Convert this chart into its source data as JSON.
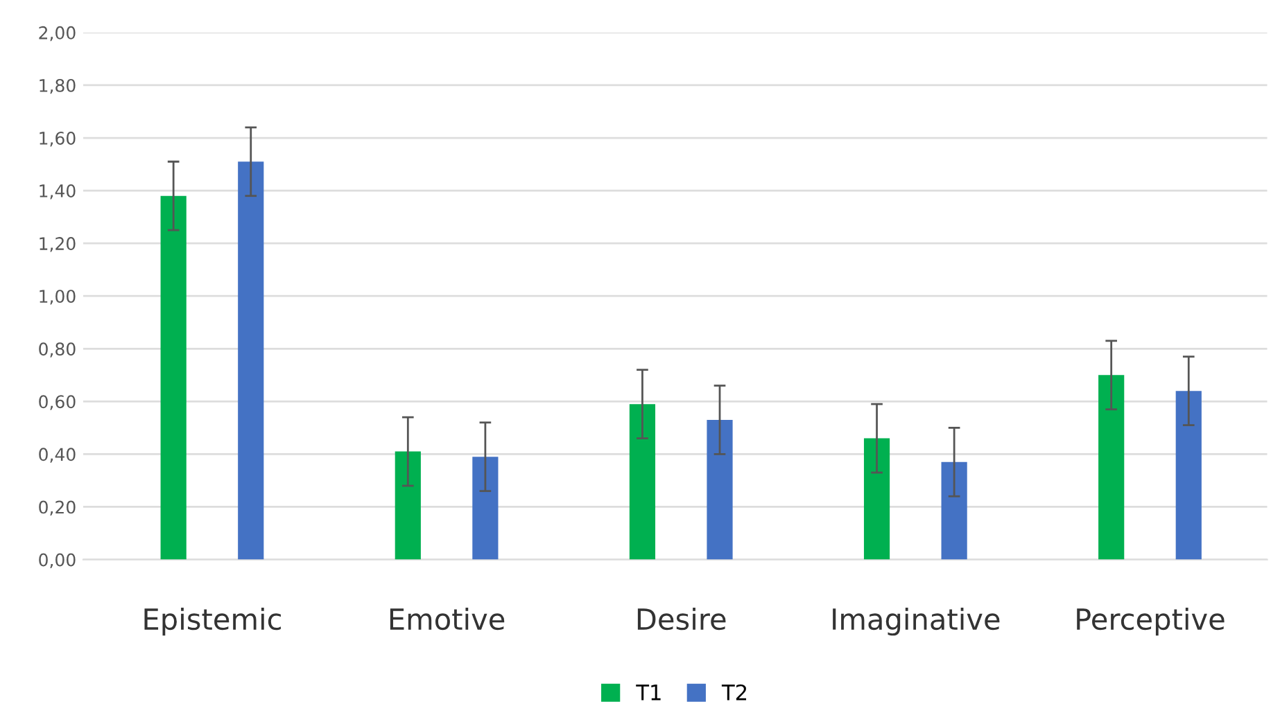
{
  "chart_data": {
    "type": "bar",
    "categories": [
      "Epistemic",
      "Emotive",
      "Desire",
      "Imaginative",
      "Perceptive"
    ],
    "series": [
      {
        "name": "T1",
        "color": "#00b050",
        "values": [
          1.38,
          0.41,
          0.59,
          0.46,
          0.7
        ],
        "errors": [
          0.13,
          0.13,
          0.13,
          0.13,
          0.13
        ]
      },
      {
        "name": "T2",
        "color": "#4472c4",
        "values": [
          1.51,
          0.39,
          0.53,
          0.37,
          0.64
        ],
        "errors": [
          0.13,
          0.13,
          0.13,
          0.13,
          0.13
        ]
      }
    ],
    "ylim": [
      0,
      2
    ],
    "yticks": [
      {
        "value": 0,
        "label": "0,00"
      },
      {
        "value": 0.2,
        "label": "0,20"
      },
      {
        "value": 0.4,
        "label": "0,40"
      },
      {
        "value": 0.6,
        "label": "0,60"
      },
      {
        "value": 0.8,
        "label": "0,80"
      },
      {
        "value": 1.0,
        "label": "1,00"
      },
      {
        "value": 1.2,
        "label": "1,20"
      },
      {
        "value": 1.4,
        "label": "1,40"
      },
      {
        "value": 1.6,
        "label": "1,60"
      },
      {
        "value": 1.8,
        "label": "1,80"
      },
      {
        "value": 2.0,
        "label": "2,00"
      }
    ],
    "grid": "y",
    "legend": "bottom"
  }
}
